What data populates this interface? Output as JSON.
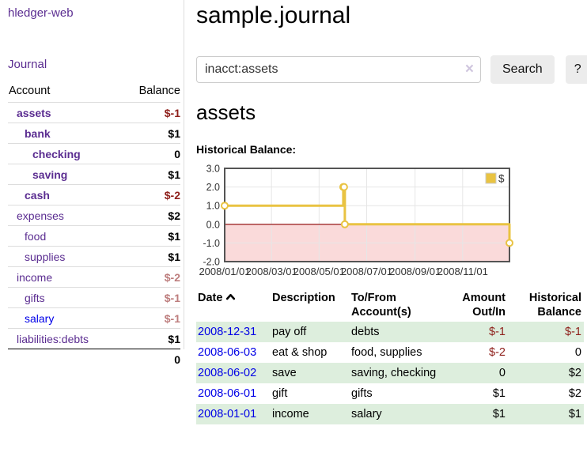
{
  "colors": {
    "link_purple": "#5b2d91",
    "link_blue": "#0000e8",
    "negative": "#8e1f1a",
    "negative_muted": "#bd7d7d",
    "row_highlight_green": "#ddeedd",
    "chart_line_gold": "#e9c342",
    "chart_negative_region": "#fadada",
    "chart_zero_line": "#8b0000",
    "button_gray": "#ececec"
  },
  "sidebar": {
    "brand": "hledger-web",
    "journal_link": "Journal",
    "accounts_table": {
      "headers": {
        "account": "Account",
        "balance": "Balance"
      },
      "rows": [
        {
          "account": "assets",
          "balance": "$-1",
          "level": 1,
          "emphasis": true,
          "balance_tone": "negative",
          "link_tone": "purple"
        },
        {
          "account": "bank",
          "balance": "$1",
          "level": 2,
          "emphasis": true,
          "balance_tone": "positive",
          "link_tone": "purple"
        },
        {
          "account": "checking",
          "balance": "0",
          "level": 3,
          "emphasis": true,
          "balance_tone": "positive",
          "link_tone": "purple"
        },
        {
          "account": "saving",
          "balance": "$1",
          "level": 3,
          "emphasis": true,
          "balance_tone": "positive",
          "link_tone": "purple"
        },
        {
          "account": "cash",
          "balance": "$-2",
          "level": 2,
          "emphasis": true,
          "balance_tone": "negative",
          "link_tone": "purple"
        },
        {
          "account": "expenses",
          "balance": "$2",
          "level": 1,
          "emphasis": false,
          "balance_tone": "positive",
          "link_tone": "purple"
        },
        {
          "account": "food",
          "balance": "$1",
          "level": 2,
          "emphasis": false,
          "balance_tone": "positive",
          "link_tone": "purple"
        },
        {
          "account": "supplies",
          "balance": "$1",
          "level": 2,
          "emphasis": false,
          "balance_tone": "positive",
          "link_tone": "purple"
        },
        {
          "account": "income",
          "balance": "$-2",
          "level": 1,
          "emphasis": false,
          "balance_tone": "negative-muted",
          "link_tone": "purple"
        },
        {
          "account": "gifts",
          "balance": "$-1",
          "level": 2,
          "emphasis": false,
          "balance_tone": "negative-muted",
          "link_tone": "purple"
        },
        {
          "account": "salary",
          "balance": "$-1",
          "level": 2,
          "emphasis": false,
          "balance_tone": "negative-muted",
          "link_tone": "blue"
        },
        {
          "account": "liabilities:debts",
          "balance": "$1",
          "level": 1,
          "emphasis": false,
          "balance_tone": "positive",
          "link_tone": "purple"
        }
      ],
      "total": "0"
    }
  },
  "header": {
    "title": "sample.journal"
  },
  "search": {
    "query_value": "inacct:assets",
    "clear_icon": "×",
    "search_button": "Search",
    "help_button": "?"
  },
  "account_view": {
    "heading": "assets",
    "chart_title": "Historical Balance:"
  },
  "chart_data": {
    "type": "line",
    "step": true,
    "title": "Historical Balance",
    "series": [
      {
        "name": "$",
        "color": "#e9c342",
        "points": [
          {
            "date": "2008-01-01",
            "value": 1
          },
          {
            "date": "2008-06-01",
            "value": 2
          },
          {
            "date": "2008-06-02",
            "value": 2
          },
          {
            "date": "2008-06-03",
            "value": 0
          },
          {
            "date": "2008-12-31",
            "value": -1
          }
        ]
      }
    ],
    "x_start": "2008-01-01",
    "x_end": "2008-12-31",
    "ylim": [
      -2,
      3
    ],
    "y_ticks": [
      {
        "value": 3,
        "label": "3.0"
      },
      {
        "value": 2,
        "label": "2.0"
      },
      {
        "value": 1,
        "label": "1.0"
      },
      {
        "value": 0,
        "label": "0.0"
      },
      {
        "value": -1,
        "label": "-1.0"
      },
      {
        "value": -2,
        "label": "-2.0"
      }
    ],
    "x_ticks": [
      {
        "date": "2008-01-01",
        "label": "2008/01/01"
      },
      {
        "date": "2008-03-01",
        "label": "2008/03/01"
      },
      {
        "date": "2008-05-01",
        "label": "2008/05/01"
      },
      {
        "date": "2008-07-01",
        "label": "2008/07/01"
      },
      {
        "date": "2008-09-01",
        "label": "2008/09/01"
      },
      {
        "date": "2008-11-01",
        "label": "2008/11/01"
      }
    ],
    "grid": true,
    "legend": {
      "label": "$",
      "position": "top-right"
    },
    "negative_region": true
  },
  "register": {
    "headers": {
      "date": "Date",
      "description": "Description",
      "accounts": "To/From Account(s)",
      "amount": "Amount Out/In",
      "balance": "Historical Balance"
    },
    "sort": {
      "column": "date",
      "direction": "ascending"
    },
    "rows": [
      {
        "date": "2008-12-31",
        "description": "pay off",
        "accounts": "debts",
        "amount": "$-1",
        "balance": "$-1",
        "highlight": true
      },
      {
        "date": "2008-06-03",
        "description": "eat & shop",
        "accounts": "food, supplies",
        "amount": "$-2",
        "balance": "0",
        "highlight": false
      },
      {
        "date": "2008-06-02",
        "description": "save",
        "accounts": "saving, checking",
        "amount": "0",
        "balance": "$2",
        "highlight": true
      },
      {
        "date": "2008-06-01",
        "description": "gift",
        "accounts": "gifts",
        "amount": "$1",
        "balance": "$2",
        "highlight": false
      },
      {
        "date": "2008-01-01",
        "description": "income",
        "accounts": "salary",
        "amount": "$1",
        "balance": "$1",
        "highlight": true
      }
    ]
  }
}
